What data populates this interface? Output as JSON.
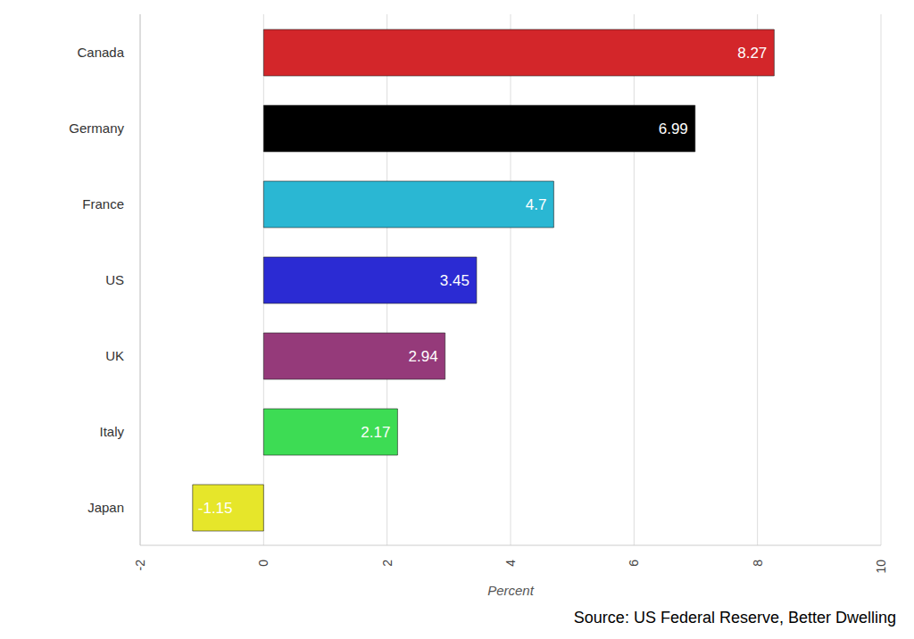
{
  "chart_data": {
    "type": "bar",
    "orientation": "horizontal",
    "categories": [
      "Canada",
      "Germany",
      "France",
      "US",
      "UK",
      "Italy",
      "Japan"
    ],
    "values": [
      8.27,
      6.99,
      4.7,
      3.45,
      2.94,
      2.17,
      -1.15
    ],
    "colors": [
      "#d3262a",
      "#000000",
      "#2ab7d3",
      "#2b2bd3",
      "#953a7a",
      "#3ddc54",
      "#e6e62a"
    ],
    "xlabel": "Percent",
    "xlim": [
      -2,
      10
    ],
    "xticks": [
      -2,
      0,
      2,
      4,
      6,
      8,
      10
    ],
    "grid": true,
    "data_labels": true,
    "annotations": [
      "Source: US Federal Reserve, Better Dwelling"
    ]
  }
}
